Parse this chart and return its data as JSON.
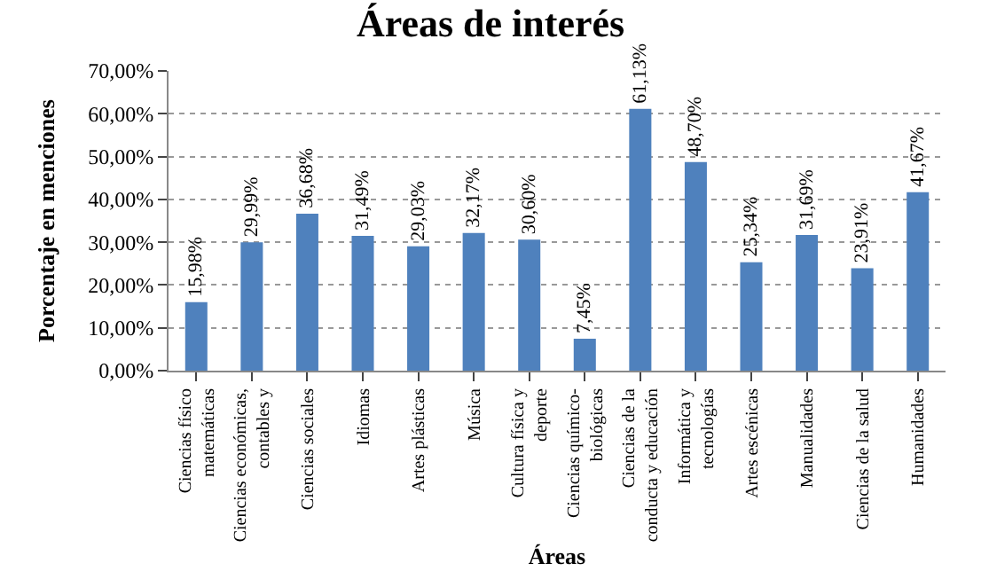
{
  "chart_data": {
    "type": "bar",
    "title": "Áreas de interés",
    "xlabel": "Áreas",
    "ylabel": "Porcentaje en menciones",
    "categories": [
      "Ciencias físico matemáticas",
      "Ciencias económicas, contables y",
      "Ciencias sociales",
      "Idiomas",
      "Artes plásticas",
      "Música",
      "Cultura física y deporte",
      "Ciencias químico-biológicas",
      "Ciencias de la conducta y educación",
      "Informática y tecnologías",
      "Artes escénicas",
      "Manualidades",
      "Ciencias de la salud",
      "Humanidades"
    ],
    "values": [
      15.98,
      29.99,
      36.68,
      31.49,
      29.03,
      32.17,
      30.6,
      7.45,
      61.13,
      48.7,
      25.34,
      31.69,
      23.91,
      41.67
    ],
    "value_labels": [
      "15,98%",
      "29,99%",
      "36,68%",
      "31,49%",
      "29,03%",
      "32,17%",
      "30,60%",
      "7,45%",
      "61,13%",
      "48,70%",
      "25,34%",
      "31,69%",
      "23,91%",
      "41,67%"
    ],
    "color": "#4f81bd",
    "ylim": [
      0,
      70
    ],
    "yticks": [
      {
        "value": 0,
        "label": "0,00%"
      },
      {
        "value": 10,
        "label": "10,00%"
      },
      {
        "value": 20,
        "label": "20,00%"
      },
      {
        "value": 30,
        "label": "30,00%"
      },
      {
        "value": 40,
        "label": "40,00%"
      },
      {
        "value": 50,
        "label": "50,00%"
      },
      {
        "value": 60,
        "label": "60,00%"
      },
      {
        "value": 70,
        "label": "70,00%"
      }
    ],
    "grid": "y",
    "legend": false
  }
}
